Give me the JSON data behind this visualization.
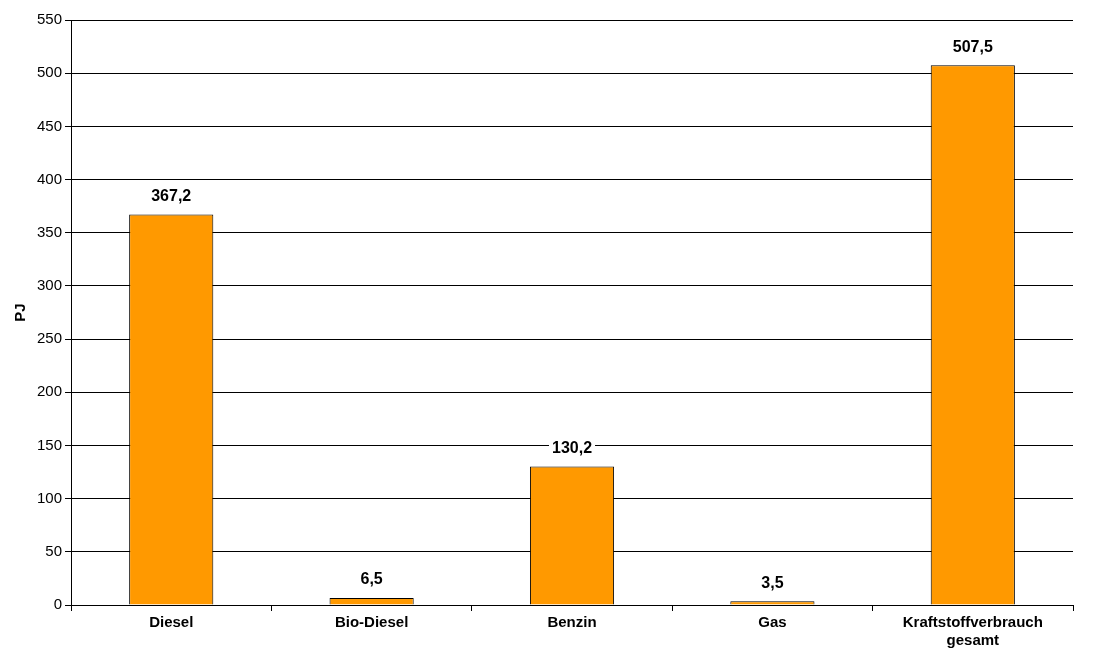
{
  "chart_data": {
    "type": "bar",
    "ylabel": "PJ",
    "categories": [
      "Diesel",
      "Bio-Diesel",
      "Benzin",
      "Gas",
      "Kraftstoffverbrauch gesamt"
    ],
    "values": [
      367.2,
      6.5,
      130.2,
      3.5,
      507.5
    ],
    "value_labels": [
      "367,2",
      "6,5",
      "130,2",
      "3,5",
      "507,5"
    ],
    "color": "#ff9900",
    "ylim": [
      0,
      550
    ],
    "yticks": [
      0,
      50,
      100,
      150,
      200,
      250,
      300,
      350,
      400,
      450,
      500,
      550
    ],
    "grid": "y",
    "legend": false
  }
}
